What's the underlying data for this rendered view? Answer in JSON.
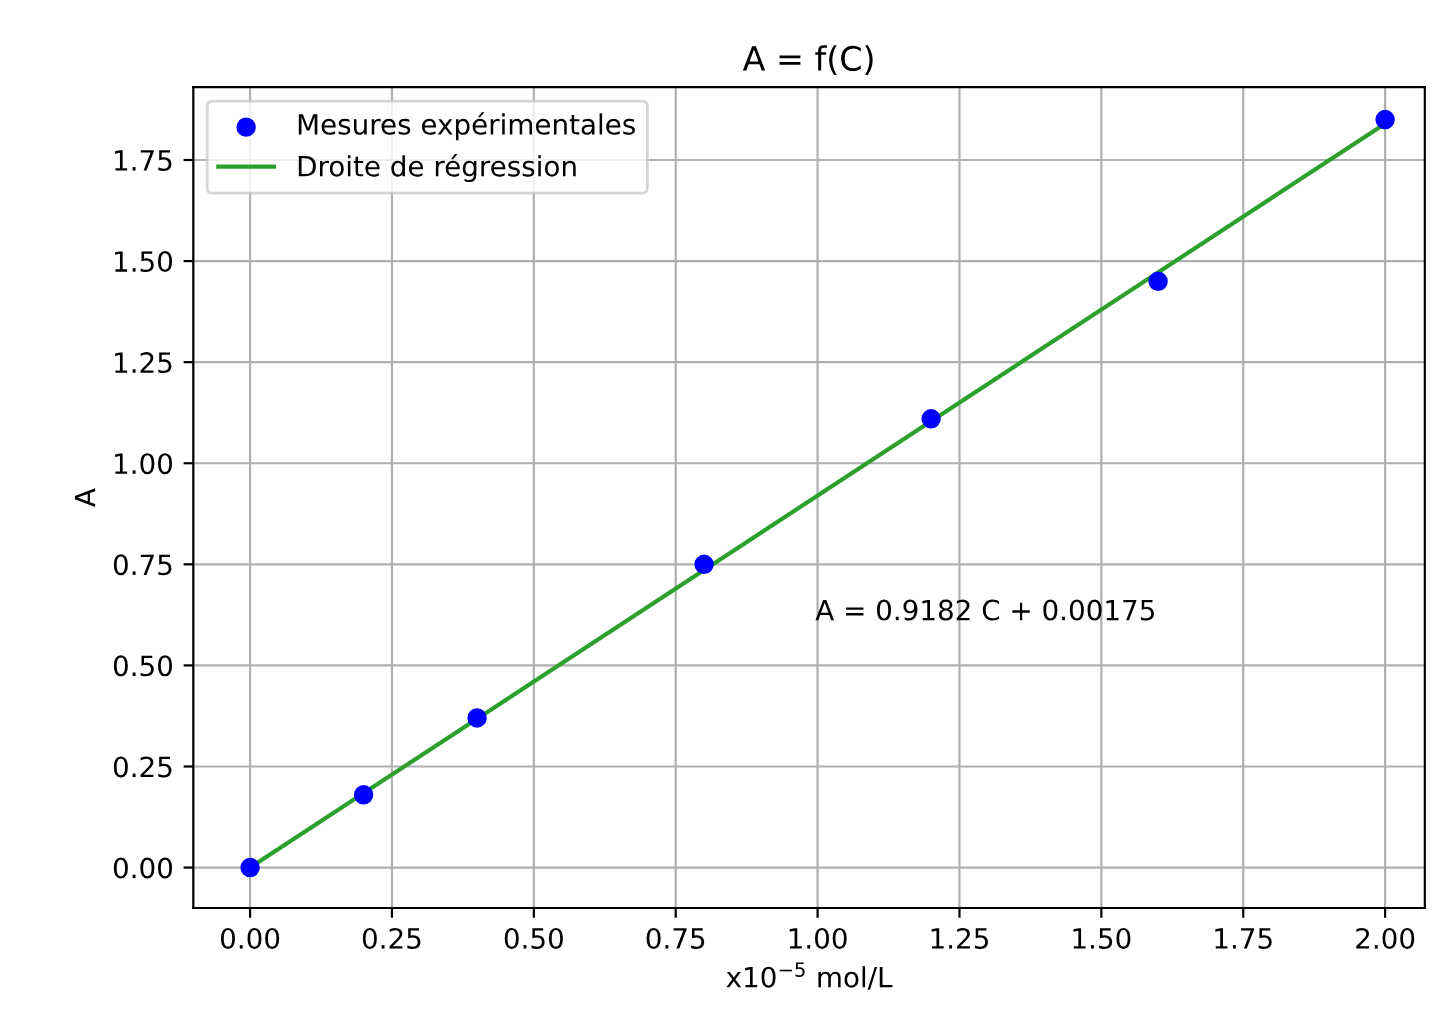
{
  "chart_data": {
    "type": "scatter",
    "title": "A = f(C)",
    "xlabel": "x10$^{−5}$ mol/L",
    "ylabel": "A",
    "x": [
      0,
      0.2,
      0.4,
      0.8,
      1.2,
      1.6,
      2.0
    ],
    "series": [
      {
        "name": "Mesures expérimentales",
        "color": "#0000ff",
        "marker": "circle",
        "values": [
          0,
          0.18,
          0.37,
          0.75,
          1.11,
          1.45,
          1.85
        ]
      },
      {
        "name": "Droite de régression",
        "type": "line",
        "color": "#2ca02c",
        "line_style": "solid",
        "marker": "none",
        "x": [
          0,
          2.0
        ],
        "values": [
          0.0,
          1.84
        ]
      }
    ],
    "annotations": [
      "A = 0.9182 C + 0.00175"
    ],
    "xlim": [
      -0.1,
      2.07
    ],
    "ylim": [
      -0.1,
      1.93
    ],
    "xticks": [
      {
        "value": 0,
        "label": "0.00"
      },
      0.25,
      {
        "value": 0.5,
        "label": "0.50"
      },
      0.75,
      {
        "value": 1,
        "label": "1.00"
      },
      1.25,
      {
        "value": 1.5,
        "label": "1.50"
      },
      1.75,
      {
        "value": 2,
        "label": "2.00"
      }
    ],
    "yticks": [
      {
        "value": 0,
        "label": "0.00"
      },
      0.25,
      {
        "value": 0.5,
        "label": "0.50"
      },
      0.75,
      {
        "value": 1,
        "label": "1.00"
      },
      1.25,
      {
        "value": 1.5,
        "label": "1.50"
      },
      1.75
    ],
    "grid": true,
    "legend": "top left"
  }
}
